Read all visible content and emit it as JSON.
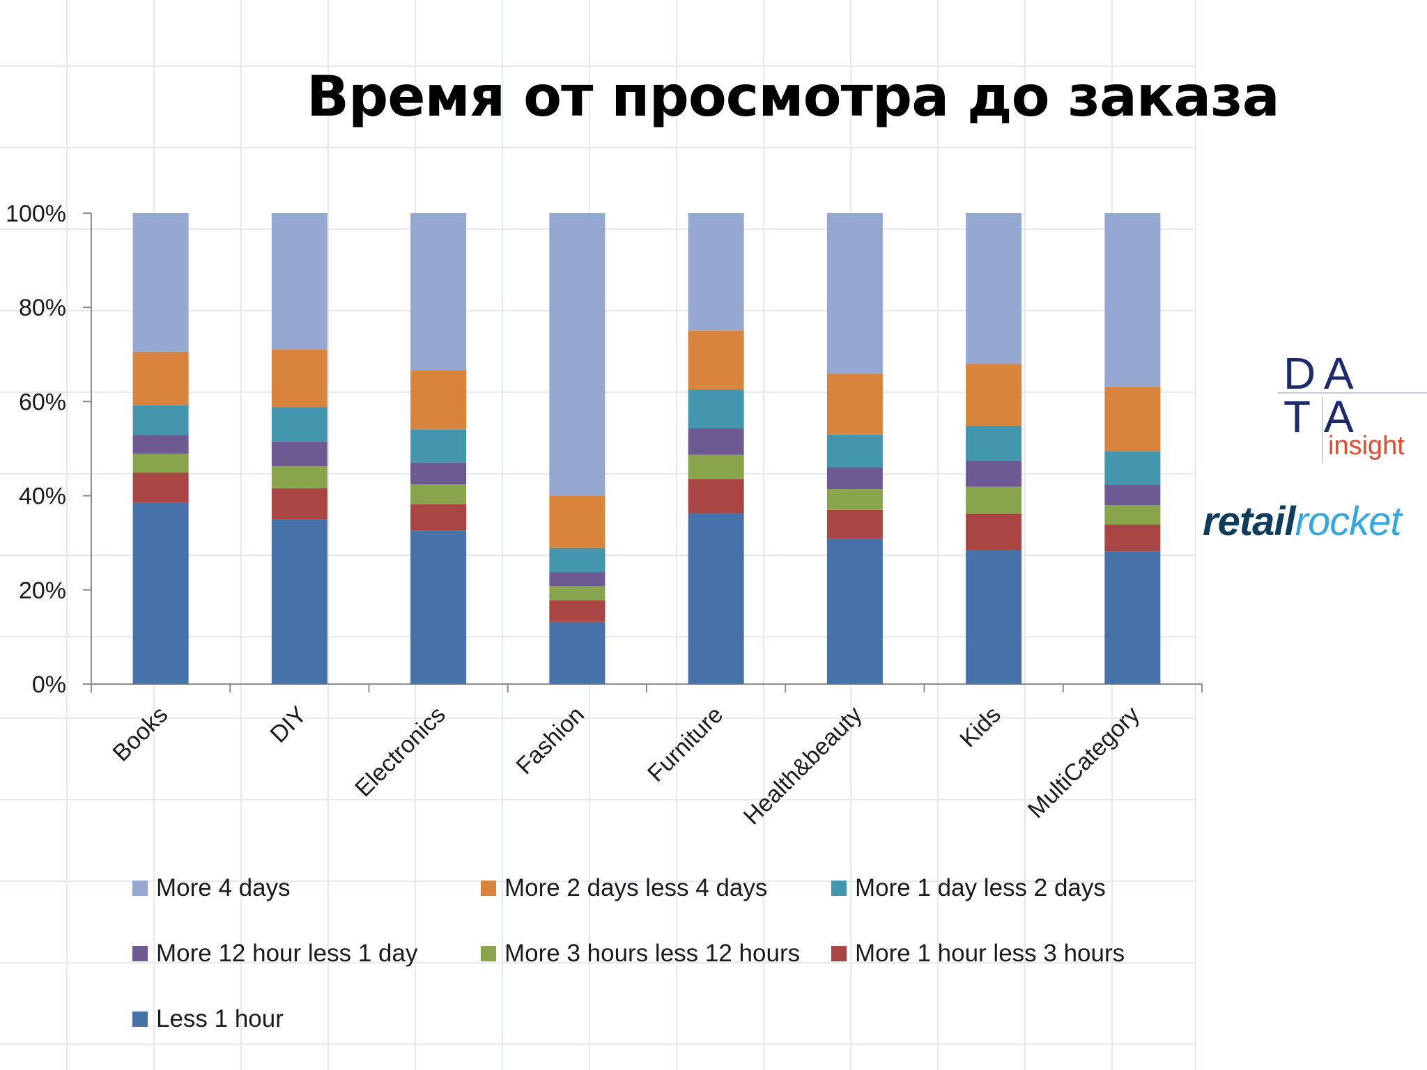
{
  "title": "Время от просмотра до заказа",
  "colors": {
    "series": [
      "#4672a9",
      "#a94643",
      "#88a54b",
      "#6e5a93",
      "#4396ad",
      "#d9843c",
      "#94a8d2"
    ],
    "data_logo": "#1c2b6b",
    "insight": "#e04b2f",
    "retail": "#0f3d5e",
    "rocket": "#33a8e0"
  },
  "logos": {
    "data_insight": {
      "d": "D",
      "a1": "A",
      "t": "T",
      "a2": "A",
      "insight": "insight"
    },
    "retailrocket": {
      "part1": "retail",
      "part2": "rocket"
    }
  },
  "chart_data": {
    "type": "bar",
    "stacked": true,
    "title": "Время от просмотра до заказа",
    "categories": [
      "Books",
      "DIY",
      "Electronics",
      "Fashion",
      "Furniture",
      "Health&beauty",
      "Kids",
      "MultiCategory"
    ],
    "y_ticks": [
      "0%",
      "20%",
      "40%",
      "60%",
      "80%",
      "100%"
    ],
    "ylim": [
      0,
      100
    ],
    "grid": false,
    "legend_position": "bottom",
    "series": [
      {
        "name": "Less 1 hour",
        "values": [
          38.6,
          35,
          32.6,
          13.2,
          36.3,
          30.8,
          28.4,
          28.2
        ]
      },
      {
        "name": "More 1 hour less 3 hours",
        "values": [
          6.3,
          6.6,
          5.6,
          4.6,
          7.2,
          6.2,
          7.8,
          5.7
        ]
      },
      {
        "name": "More 3 hours less 12 hours",
        "values": [
          4,
          4.7,
          4.2,
          3,
          5.2,
          4.4,
          5.7,
          4.1
        ]
      },
      {
        "name": "More 12 hour less 1 day",
        "values": [
          4,
          5.2,
          4.6,
          3,
          5.6,
          4.6,
          5.5,
          4.3
        ]
      },
      {
        "name": "More 1 day less 2 days",
        "values": [
          6.3,
          7.3,
          7.1,
          5.1,
          8.2,
          7,
          7.5,
          7.1
        ]
      },
      {
        "name": "More 2 days less 4 days",
        "values": [
          11.4,
          12.3,
          12.6,
          11.1,
          12.6,
          12.9,
          13.1,
          13.8
        ]
      },
      {
        "name": "More 4 days",
        "values": [
          29.4,
          28.9,
          33.3,
          60,
          24.9,
          34.1,
          32,
          36.8
        ]
      }
    ],
    "legend_order": [
      6,
      5,
      4,
      3,
      2,
      1,
      0
    ]
  }
}
